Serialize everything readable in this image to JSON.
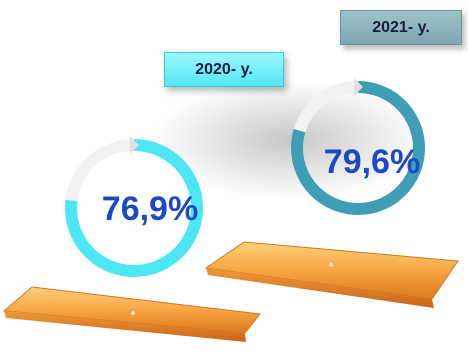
{
  "chart_data": {
    "type": "pie",
    "series": [
      {
        "name": "2020- y.",
        "value": 76.9,
        "value_label": "76,9%",
        "color": "#4ce6f5"
      },
      {
        "name": "2021- y.",
        "value": 79.6,
        "value_label": "79,6%",
        "color": "#3f9db5"
      }
    ],
    "value_color": "#1c49c4",
    "remainder_color": "#f2f2f2",
    "pedestal_color": "#f5a04a"
  }
}
